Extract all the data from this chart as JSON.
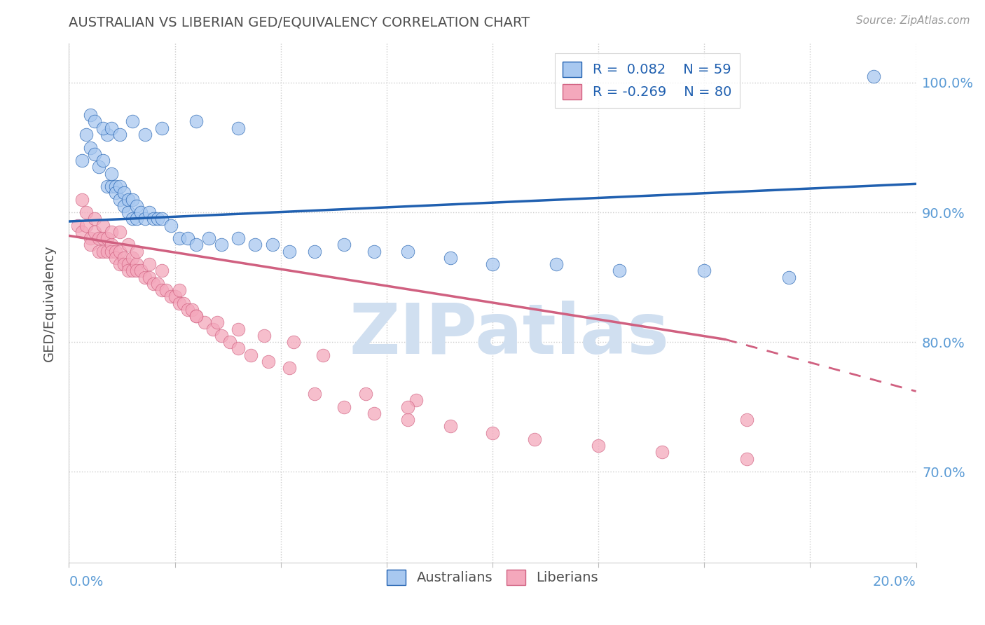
{
  "title": "AUSTRALIAN VS LIBERIAN GED/EQUIVALENCY CORRELATION CHART",
  "source": "Source: ZipAtlas.com",
  "ylabel": "GED/Equivalency",
  "xlim": [
    0.0,
    0.2
  ],
  "ylim": [
    0.63,
    1.03
  ],
  "yticks": [
    0.7,
    0.8,
    0.9,
    1.0
  ],
  "ytick_labels": [
    "70.0%",
    "80.0%",
    "90.0%",
    "100.0%"
  ],
  "xticks": [
    0.0,
    0.025,
    0.05,
    0.075,
    0.1,
    0.125,
    0.15,
    0.175,
    0.2
  ],
  "legend_label1": "Australians",
  "legend_label2": "Liberians",
  "color_australian": "#a8c8f0",
  "color_liberian": "#f4a8bc",
  "color_line_australian": "#2060b0",
  "color_line_liberian": "#d06080",
  "color_axis_labels": "#5b9bd5",
  "color_title": "#505050",
  "color_source": "#999999",
  "watermark_color": "#d0dff0",
  "au_line_x0": 0.0,
  "au_line_y0": 0.893,
  "au_line_x1": 0.2,
  "au_line_y1": 0.922,
  "lib_line_x0": 0.0,
  "lib_line_y0": 0.882,
  "lib_line_solid_x1": 0.155,
  "lib_line_y_solid1": 0.802,
  "lib_line_x1": 0.2,
  "lib_line_y1": 0.762,
  "au_scatter_x": [
    0.003,
    0.004,
    0.005,
    0.006,
    0.007,
    0.008,
    0.009,
    0.009,
    0.01,
    0.01,
    0.011,
    0.011,
    0.012,
    0.012,
    0.013,
    0.013,
    0.014,
    0.014,
    0.015,
    0.015,
    0.016,
    0.016,
    0.017,
    0.018,
    0.019,
    0.02,
    0.021,
    0.022,
    0.024,
    0.026,
    0.028,
    0.03,
    0.033,
    0.036,
    0.04,
    0.044,
    0.048,
    0.052,
    0.058,
    0.065,
    0.072,
    0.08,
    0.09,
    0.1,
    0.115,
    0.13,
    0.15,
    0.17,
    0.19,
    0.005,
    0.006,
    0.008,
    0.01,
    0.012,
    0.015,
    0.018,
    0.022,
    0.03,
    0.04
  ],
  "au_scatter_y": [
    0.94,
    0.96,
    0.95,
    0.945,
    0.935,
    0.94,
    0.92,
    0.96,
    0.92,
    0.93,
    0.92,
    0.915,
    0.92,
    0.91,
    0.915,
    0.905,
    0.91,
    0.9,
    0.91,
    0.895,
    0.905,
    0.895,
    0.9,
    0.895,
    0.9,
    0.895,
    0.895,
    0.895,
    0.89,
    0.88,
    0.88,
    0.875,
    0.88,
    0.875,
    0.88,
    0.875,
    0.875,
    0.87,
    0.87,
    0.875,
    0.87,
    0.87,
    0.865,
    0.86,
    0.86,
    0.855,
    0.855,
    0.85,
    1.005,
    0.975,
    0.97,
    0.965,
    0.965,
    0.96,
    0.97,
    0.96,
    0.965,
    0.97,
    0.965
  ],
  "lib_scatter_x": [
    0.002,
    0.003,
    0.004,
    0.005,
    0.005,
    0.006,
    0.007,
    0.007,
    0.008,
    0.008,
    0.009,
    0.009,
    0.01,
    0.01,
    0.011,
    0.011,
    0.012,
    0.012,
    0.013,
    0.013,
    0.014,
    0.014,
    0.015,
    0.015,
    0.016,
    0.016,
    0.017,
    0.018,
    0.019,
    0.02,
    0.021,
    0.022,
    0.023,
    0.024,
    0.025,
    0.026,
    0.027,
    0.028,
    0.029,
    0.03,
    0.032,
    0.034,
    0.036,
    0.038,
    0.04,
    0.043,
    0.047,
    0.052,
    0.058,
    0.065,
    0.072,
    0.08,
    0.09,
    0.1,
    0.11,
    0.125,
    0.14,
    0.16,
    0.003,
    0.004,
    0.006,
    0.008,
    0.01,
    0.012,
    0.014,
    0.016,
    0.019,
    0.022,
    0.026,
    0.03,
    0.035,
    0.04,
    0.046,
    0.053,
    0.06,
    0.07,
    0.082,
    0.16,
    0.08
  ],
  "lib_scatter_y": [
    0.89,
    0.885,
    0.89,
    0.88,
    0.875,
    0.885,
    0.88,
    0.87,
    0.88,
    0.87,
    0.88,
    0.87,
    0.875,
    0.87,
    0.87,
    0.865,
    0.87,
    0.86,
    0.865,
    0.86,
    0.86,
    0.855,
    0.865,
    0.855,
    0.86,
    0.855,
    0.855,
    0.85,
    0.85,
    0.845,
    0.845,
    0.84,
    0.84,
    0.835,
    0.835,
    0.83,
    0.83,
    0.825,
    0.825,
    0.82,
    0.815,
    0.81,
    0.805,
    0.8,
    0.795,
    0.79,
    0.785,
    0.78,
    0.76,
    0.75,
    0.745,
    0.74,
    0.735,
    0.73,
    0.725,
    0.72,
    0.715,
    0.71,
    0.91,
    0.9,
    0.895,
    0.89,
    0.885,
    0.885,
    0.875,
    0.87,
    0.86,
    0.855,
    0.84,
    0.82,
    0.815,
    0.81,
    0.805,
    0.8,
    0.79,
    0.76,
    0.755,
    0.74,
    0.75
  ]
}
